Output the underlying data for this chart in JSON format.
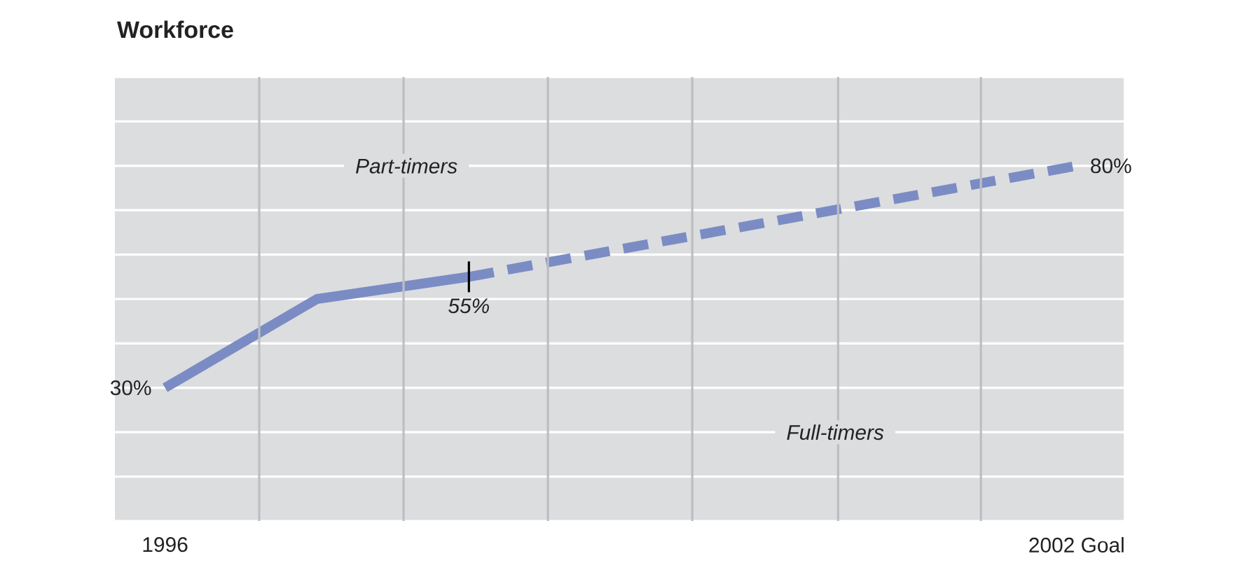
{
  "chart_data": {
    "type": "line",
    "title": "Workforce",
    "annotations": [
      "Part-timers",
      "Full-timers"
    ],
    "xlim": [
      1995.67,
      2002.31
    ],
    "xticks": [
      {
        "value": 1996,
        "label": "1996"
      },
      {
        "value": 1996.62,
        "label": null
      },
      {
        "value": 1997.57,
        "label": null
      },
      {
        "value": 1998.52,
        "label": null
      },
      {
        "value": 1999.47,
        "label": null
      },
      {
        "value": 2000.43,
        "label": null
      },
      {
        "value": 2001.37,
        "label": null
      },
      {
        "value": 2002,
        "label": "2002 Goal"
      }
    ],
    "ylim": [
      0,
      100
    ],
    "yticks": [
      {
        "value": 0,
        "label": null
      },
      {
        "value": 10,
        "label": null
      },
      {
        "value": 20,
        "label": null
      },
      {
        "value": 30,
        "label": null
      },
      {
        "value": 40,
        "label": null
      },
      {
        "value": 50,
        "label": null
      },
      {
        "value": 60,
        "label": null
      },
      {
        "value": 70,
        "label": null
      },
      {
        "value": 80,
        "label": null
      },
      {
        "value": 90,
        "label": null
      },
      {
        "value": 100,
        "label": null
      }
    ],
    "grid": true,
    "tick_labels": "x",
    "series": [
      {
        "x": [
          1996,
          1997,
          1998
        ],
        "values": [
          30,
          50,
          55
        ],
        "color": "#7b8cc4",
        "line_style": "solid",
        "value_labels": [
          "30%",
          null,
          "55%"
        ]
      },
      {
        "x": [
          1998,
          2002
        ],
        "values": [
          55,
          80
        ],
        "color": "#7b8cc4",
        "line_style": "dashed",
        "value_labels": [
          null,
          "80%"
        ]
      }
    ]
  }
}
